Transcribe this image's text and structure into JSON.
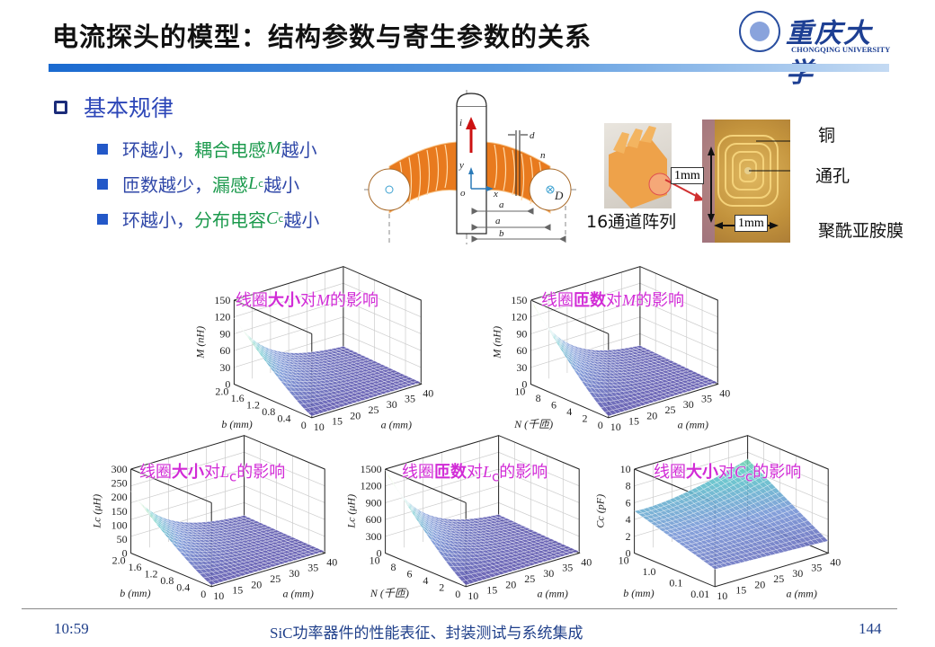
{
  "header": {
    "title": "电流探头的模型：结构参数与寄生参数的关系",
    "logo_cn": "重庆大学",
    "logo_en": "CHONGQING UNIVERSITY"
  },
  "section": {
    "heading": "基本规律",
    "bullets": [
      {
        "prefix": "环越小，",
        "highlight": "耦合电感",
        "sym": "M",
        "sub": "",
        "suffix": "越小"
      },
      {
        "prefix": "匝数越少，",
        "highlight": "漏感",
        "sym": "L",
        "sub": "c",
        "suffix": "越小"
      },
      {
        "prefix": "环越小，",
        "highlight": "分布电容",
        "sym": "C",
        "sub": "c",
        "suffix": "越小"
      }
    ]
  },
  "diagram": {
    "labels": {
      "current": "i",
      "current_sub": "d",
      "y": "y",
      "x": "x",
      "o": "o",
      "d": "d",
      "n": "n",
      "D": "D",
      "a": "a",
      "a0": "a",
      "a0_sub": "0",
      "b": "b"
    }
  },
  "photos": {
    "array_label": "16通道阵列",
    "copper": "铜",
    "via": "通孔",
    "polyimide": "聚酰亚胺膜",
    "scale_v": "1mm",
    "scale_h": "1mm"
  },
  "colors": {
    "accent": "#2c46b8",
    "green": "#1c9a4d",
    "magenta": "#d12bd6",
    "bar_start": "#1a6ad0"
  },
  "chart_data": [
    {
      "type": "surface3d",
      "title_parts": [
        "线圈",
        "大小",
        "对",
        "M",
        "",
        "的影响"
      ],
      "zlabel": "M (nH)",
      "xlabel": "a (mm)",
      "ylabel": "b (mm)",
      "zticks": [
        "0",
        "30",
        "60",
        "90",
        "120",
        "150"
      ],
      "zlim": [
        0,
        150
      ],
      "xticks": [
        "10",
        "15",
        "20",
        "25",
        "30",
        "35",
        "40"
      ],
      "xlim": [
        10,
        40
      ],
      "yticks": [
        "0",
        "0.4",
        "0.8",
        "1.2",
        "1.6",
        "2.0"
      ],
      "ylim": [
        0,
        2.0
      ],
      "peak": 115
    },
    {
      "type": "surface3d",
      "title_parts": [
        "线圈",
        "匝数",
        "对",
        "M",
        "",
        "的影响"
      ],
      "zlabel": "M (nH)",
      "xlabel": "a (mm)",
      "ylabel": "N (千匝)",
      "zticks": [
        "0",
        "30",
        "60",
        "90",
        "120",
        "150"
      ],
      "zlim": [
        0,
        150
      ],
      "xticks": [
        "10",
        "15",
        "20",
        "25",
        "30",
        "35",
        "40"
      ],
      "xlim": [
        10,
        40
      ],
      "yticks": [
        "0",
        "2",
        "4",
        "6",
        "8",
        "10"
      ],
      "ylim": [
        0,
        10
      ],
      "peak": 148
    },
    {
      "type": "surface3d",
      "title_parts": [
        "线圈",
        "大小",
        "对",
        "L",
        "c",
        "的影响"
      ],
      "zlabel": "Lc (μH)",
      "xlabel": "a (mm)",
      "ylabel": "b (mm)",
      "zticks": [
        "0",
        "50",
        "100",
        "150",
        "200",
        "250",
        "300"
      ],
      "zlim": [
        0,
        300
      ],
      "xticks": [
        "10",
        "15",
        "20",
        "25",
        "30",
        "35",
        "40"
      ],
      "xlim": [
        10,
        40
      ],
      "yticks": [
        "0",
        "0.4",
        "0.8",
        "1.2",
        "1.6",
        "2.0"
      ],
      "ylim": [
        0,
        2.0
      ],
      "peak": 215
    },
    {
      "type": "surface3d",
      "title_parts": [
        "线圈",
        "匝数",
        "对",
        "L",
        "c",
        "的影响"
      ],
      "zlabel": "Lc (μH)",
      "xlabel": "a (mm)",
      "ylabel": "N (千匝)",
      "zticks": [
        "0",
        "300",
        "600",
        "900",
        "1200",
        "1500"
      ],
      "zlim": [
        0,
        1500
      ],
      "xticks": [
        "10",
        "15",
        "20",
        "25",
        "30",
        "35",
        "40"
      ],
      "xlim": [
        10,
        40
      ],
      "yticks": [
        "0",
        "2",
        "4",
        "6",
        "8",
        "10"
      ],
      "ylim": [
        0,
        10
      ],
      "peak": 1450
    },
    {
      "type": "surface3d",
      "title_parts": [
        "线圈",
        "大小",
        "对",
        "C",
        "c",
        "的影响"
      ],
      "zlabel": "Cc (pF)",
      "xlabel": "a (mm)",
      "ylabel": "b (mm)",
      "zticks": [
        "0",
        "2",
        "4",
        "6",
        "8",
        "10"
      ],
      "zlim": [
        0,
        10
      ],
      "xticks": [
        "10",
        "15",
        "20",
        "25",
        "30",
        "35",
        "40"
      ],
      "xlim": [
        10,
        40
      ],
      "yticks": [
        "0.01",
        "0.1",
        "1.0",
        "10"
      ],
      "ylim": [
        0.01,
        10
      ],
      "peak": 9
    }
  ],
  "footer": {
    "time": "10:59",
    "course": "SiC功率器件的性能表征、封装测试与系统集成",
    "page": "144"
  }
}
